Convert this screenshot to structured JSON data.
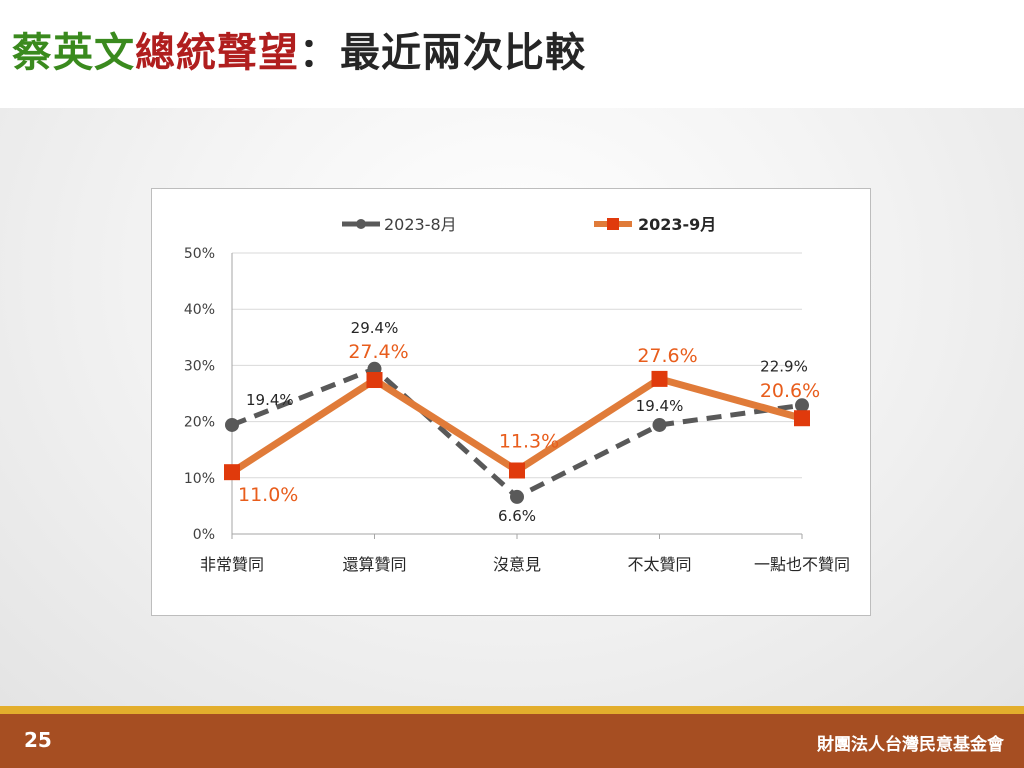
{
  "title": {
    "part1": "蔡英文",
    "part2": "總統聲望",
    "part3": "：最近兩次比較",
    "color1": "#3a8a1e",
    "color2": "#b01e1e",
    "color3": "#262626"
  },
  "footer": {
    "page": "25",
    "org": "財團法人台灣民意基金會",
    "bar_color": "#a64e22",
    "accent_color": "#e3ae2c"
  },
  "chart_data": {
    "type": "line",
    "categories": [
      "非常贊同",
      "還算贊同",
      "沒意見",
      "不太贊同",
      "一點也不贊同"
    ],
    "ylim": [
      0,
      50
    ],
    "yticks": [
      "0%",
      "10%",
      "20%",
      "30%",
      "40%",
      "50%"
    ],
    "grid": true,
    "legend_position": "top",
    "series": [
      {
        "name": "2023-8月",
        "values": [
          19.4,
          29.4,
          6.6,
          19.4,
          22.9
        ],
        "labels": [
          "19.4%",
          "29.4%",
          "6.6%",
          "19.4%",
          "22.9%"
        ],
        "color": "#595959",
        "style": "dashed",
        "marker": "circle"
      },
      {
        "name": "2023-9月",
        "values": [
          11.0,
          27.4,
          11.3,
          27.6,
          20.6
        ],
        "labels": [
          "11.0%",
          "27.4%",
          "11.3%",
          "27.6%",
          "20.6%"
        ],
        "color": "#e07b39",
        "label_color": "#e85d1c",
        "marker_color": "#e03a0c",
        "style": "solid",
        "marker": "square"
      }
    ]
  }
}
